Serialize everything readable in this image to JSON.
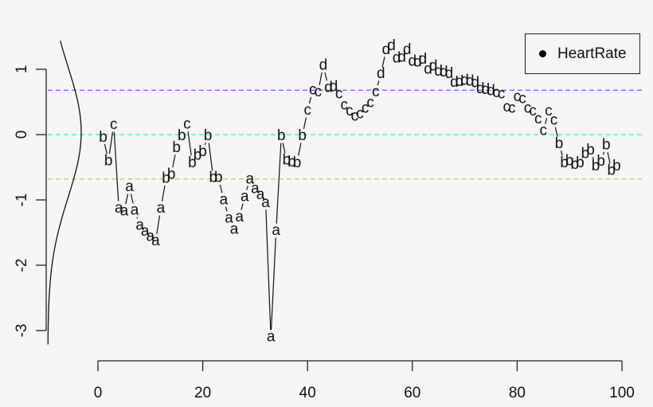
{
  "chart_data": {
    "type": "line",
    "title": "",
    "xlabel": "",
    "ylabel": "",
    "xlim": [
      0,
      100
    ],
    "ylim": [
      -3.25,
      1.4
    ],
    "x_ticks": [
      "0",
      "20",
      "40",
      "60",
      "80",
      "100"
    ],
    "y_ticks": [
      "1",
      "0",
      "-1",
      "-2",
      "-3"
    ],
    "legend": {
      "position": "topright",
      "entries": [
        "HeartRate"
      ]
    },
    "grid": false,
    "reference_lines": [
      {
        "y": 0.68,
        "color": "#a040e8",
        "style": "dashed"
      },
      {
        "y": 0.0,
        "color": "#40e0e0",
        "style": "dashed"
      },
      {
        "y": -0.68,
        "color": "#a0e040",
        "style": "dashed"
      }
    ],
    "density_curve": {
      "description": "normal density curve drawn on the left margin, rotated, peak near y=0"
    },
    "series": [
      {
        "name": "HeartRate",
        "x": [
          1,
          2,
          3,
          4,
          5,
          6,
          7,
          8,
          9,
          10,
          11,
          12,
          13,
          14,
          15,
          16,
          17,
          18,
          19,
          20,
          21,
          22,
          23,
          24,
          25,
          26,
          27,
          28,
          29,
          30,
          31,
          32,
          33,
          34,
          35,
          36,
          37,
          38,
          39,
          40,
          41,
          42,
          43,
          44,
          45,
          46,
          47,
          48,
          49,
          50,
          51,
          52,
          53,
          54,
          55,
          56,
          57,
          58,
          59,
          60,
          61,
          62,
          63,
          64,
          65,
          66,
          67,
          68,
          69,
          70,
          71,
          72,
          73,
          74,
          75,
          76,
          77,
          78,
          79,
          80,
          81,
          82,
          83,
          84,
          85,
          86,
          87,
          88,
          89,
          90,
          91,
          92,
          93,
          94,
          95,
          96,
          97,
          98,
          99
        ],
        "values": [
          -0.04,
          -0.4,
          0.15,
          -1.13,
          -1.17,
          -0.8,
          -1.16,
          -1.39,
          -1.48,
          -1.56,
          -1.63,
          -1.13,
          -0.67,
          -0.61,
          -0.2,
          -0.02,
          0.16,
          -0.43,
          -0.32,
          -0.26,
          -0.02,
          -0.66,
          -0.66,
          -1.0,
          -1.28,
          -1.45,
          -1.26,
          -0.95,
          -0.68,
          -0.83,
          -0.92,
          -1.04,
          -3.1,
          -1.47,
          -0.02,
          -0.39,
          -0.42,
          -0.43,
          -0.02,
          0.37,
          0.68,
          0.65,
          1.06,
          0.72,
          0.73,
          0.62,
          0.45,
          0.36,
          0.28,
          0.32,
          0.4,
          0.49,
          0.65,
          0.93,
          1.3,
          1.36,
          1.17,
          1.18,
          1.3,
          1.12,
          1.11,
          1.15,
          1.0,
          1.05,
          0.97,
          0.96,
          0.93,
          0.8,
          0.81,
          0.83,
          0.82,
          0.79,
          0.7,
          0.69,
          0.67,
          0.64,
          0.62,
          0.42,
          0.4,
          0.58,
          0.55,
          0.4,
          0.36,
          0.24,
          0.06,
          0.36,
          0.22,
          -0.14,
          -0.43,
          -0.4,
          -0.46,
          -0.43,
          -0.29,
          -0.24,
          -0.48,
          -0.41,
          -0.16,
          -0.55,
          -0.48
        ],
        "labels": [
          "b",
          "b",
          "c",
          "a",
          "a",
          "a",
          "a",
          "a",
          "a",
          "a",
          "a",
          "a",
          "b",
          "b",
          "b",
          "b",
          "c",
          "b",
          "b",
          "b",
          "b",
          "b",
          "b",
          "a",
          "a",
          "a",
          "a",
          "a",
          "a",
          "a",
          "a",
          "a",
          "a",
          "a",
          "b",
          "b",
          "b",
          "b",
          "b",
          "c",
          "c",
          "c",
          "d",
          "d",
          "d",
          "c",
          "c",
          "c",
          "c",
          "c",
          "c",
          "c",
          "c",
          "d",
          "d",
          "d",
          "d",
          "d",
          "d",
          "d",
          "d",
          "d",
          "d",
          "d",
          "d",
          "d",
          "d",
          "d",
          "d",
          "d",
          "d",
          "d",
          "d",
          "d",
          "d",
          "c",
          "c",
          "c",
          "c",
          "c",
          "c",
          "c",
          "c",
          "c",
          "c",
          "c",
          "c",
          "b",
          "b",
          "b",
          "b",
          "b",
          "b",
          "b",
          "b",
          "b",
          "b",
          "b",
          "b"
        ]
      }
    ]
  },
  "legend": {
    "label": "HeartRate"
  },
  "axes": {
    "x_ticks": [
      {
        "label": "0",
        "value": 0
      },
      {
        "label": "20",
        "value": 20
      },
      {
        "label": "40",
        "value": 40
      },
      {
        "label": "60",
        "value": 60
      },
      {
        "label": "80",
        "value": 80
      },
      {
        "label": "100",
        "value": 100
      }
    ],
    "y_ticks": [
      {
        "label": "1",
        "value": 1
      },
      {
        "label": "0",
        "value": 0
      },
      {
        "label": "-1",
        "value": -1
      },
      {
        "label": "-2",
        "value": -2
      },
      {
        "label": "-3",
        "value": -3
      }
    ]
  }
}
